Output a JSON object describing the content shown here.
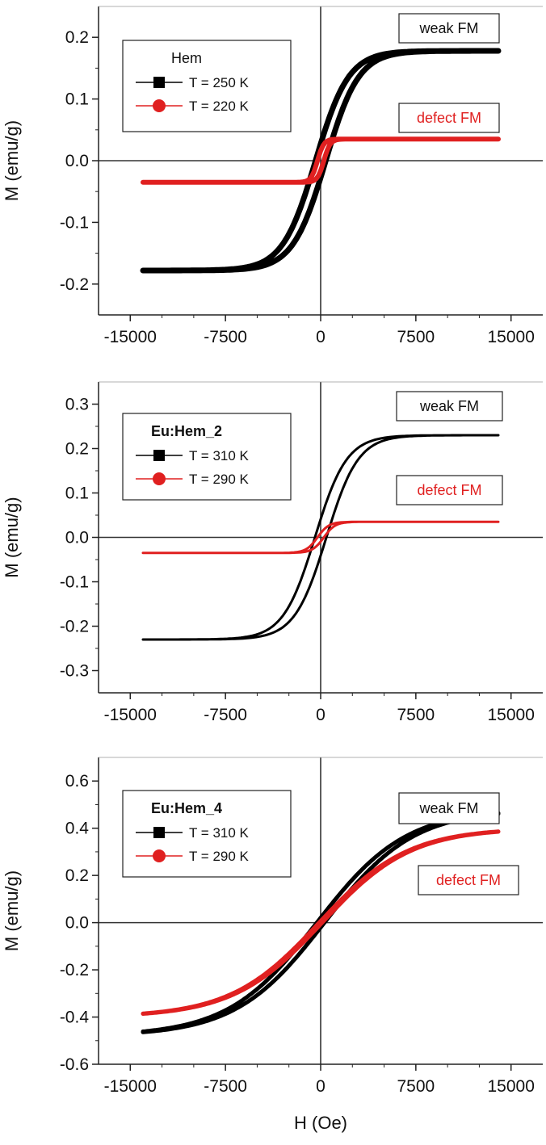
{
  "figure": {
    "xlabel": "H (Oe)"
  },
  "chart_data": [
    {
      "type": "line",
      "panel": "top",
      "ylabel": "M (emu/g)",
      "xlim": [
        -17500,
        17500
      ],
      "ylim": [
        -0.25,
        0.25
      ],
      "xticks": [
        -15000,
        -7500,
        0,
        7500,
        15000
      ],
      "xtick_labels": [
        "-15000",
        "-7500",
        "0",
        "7500",
        "15000"
      ],
      "yticks": [
        -0.2,
        -0.1,
        0.0,
        0.1,
        0.2
      ],
      "ytick_labels": [
        "-0.2",
        "-0.1",
        "0.0",
        "0.1",
        "0.2"
      ],
      "legend": {
        "title": "Hem",
        "title_bold": false,
        "placement": "top-left"
      },
      "annotations": [
        {
          "text": "weak FM",
          "color": "#111111",
          "placement": "top-right"
        },
        {
          "text": "defect FM",
          "color": "#e02020",
          "placement": "upper-right"
        }
      ],
      "series": [
        {
          "name": "T = 250 K",
          "color": "#000000",
          "marker": "square",
          "loop": true,
          "ms": 0.178,
          "hc": 400,
          "w": 2600,
          "line_width": 7
        },
        {
          "name": "T = 220 K",
          "color": "#e02020",
          "marker": "circle",
          "loop": true,
          "ms": 0.035,
          "hc": 250,
          "w": 500,
          "line_width": 6
        }
      ]
    },
    {
      "type": "line",
      "panel": "middle",
      "ylabel": "M (emu/g)",
      "xlim": [
        -17500,
        17500
      ],
      "ylim": [
        -0.35,
        0.35
      ],
      "xticks": [
        -15000,
        -7500,
        0,
        7500,
        15000
      ],
      "xtick_labels": [
        "-15000",
        "-7500",
        "0",
        "7500",
        "15000"
      ],
      "yticks": [
        -0.3,
        -0.2,
        -0.1,
        0.0,
        0.1,
        0.2,
        0.3
      ],
      "ytick_labels": [
        "-0.3",
        "-0.2",
        "-0.1",
        "0.0",
        "0.1",
        "0.2",
        "0.3"
      ],
      "legend": {
        "title": "Eu:Hem_2",
        "title_bold": true,
        "placement": "top-left"
      },
      "annotations": [
        {
          "text": "weak FM",
          "color": "#111111",
          "placement": "top-right"
        },
        {
          "text": "defect FM",
          "color": "#e02020",
          "placement": "upper-right"
        }
      ],
      "series": [
        {
          "name": "T = 310 K",
          "color": "#000000",
          "marker": "square",
          "loop": true,
          "ms": 0.23,
          "hc": 450,
          "w": 2500,
          "line_width": 3
        },
        {
          "name": "T = 290 K",
          "color": "#e02020",
          "marker": "circle",
          "loop": true,
          "ms": 0.035,
          "hc": 250,
          "w": 900,
          "line_width": 3
        }
      ]
    },
    {
      "type": "line",
      "panel": "bottom",
      "ylabel": "M (emu/g)",
      "xlim": [
        -17500,
        17500
      ],
      "ylim": [
        -0.6,
        0.7
      ],
      "xticks": [
        -15000,
        -7500,
        0,
        7500,
        15000
      ],
      "xtick_labels": [
        "-15000",
        "-7500",
        "0",
        "7500",
        "15000"
      ],
      "yticks": [
        -0.6,
        -0.4,
        -0.2,
        0.0,
        0.2,
        0.4,
        0.6
      ],
      "ytick_labels": [
        "-0.6",
        "-0.4",
        "-0.2",
        "0.0",
        "0.2",
        "0.4",
        "0.6"
      ],
      "legend": {
        "title": "Eu:Hem_4",
        "title_bold": true,
        "placement": "top-left"
      },
      "annotations": [
        {
          "text": "weak FM",
          "color": "#111111",
          "placement": "top-right"
        },
        {
          "text": "defect FM",
          "color": "#e02020",
          "placement": "right"
        }
      ],
      "series": [
        {
          "name": "T = 310 K",
          "color": "#000000",
          "marker": "square",
          "loop": true,
          "ms": 0.48,
          "hc": 300,
          "w": 7000,
          "line_width": 5
        },
        {
          "name": "T = 290 K",
          "color": "#e02020",
          "marker": "circle",
          "loop": true,
          "ms": 0.4,
          "hc": 120,
          "w": 7000,
          "line_width": 5
        }
      ]
    }
  ]
}
